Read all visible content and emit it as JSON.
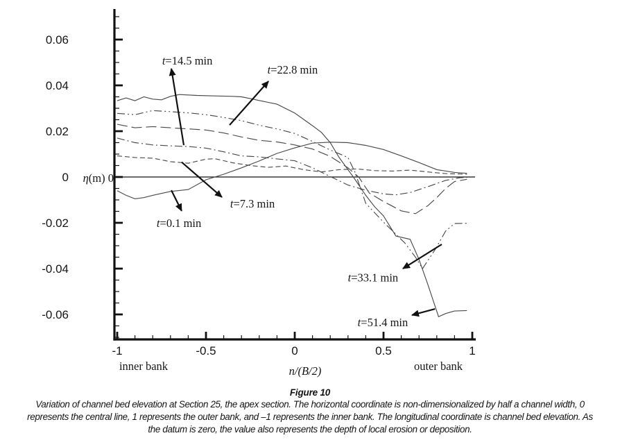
{
  "figure": {
    "caption_title": "Figure 10",
    "caption_lines": [
      "Variation of channel bed elevation at Section 25, the apex section. The horizontal coordinate is non-dimensionalized by half a channel width, 0",
      "represents the central line, 1 represents the outer bank, and –1 represents the inner bank. The longitudinal coordinate is channel bed elevation. As",
      "the datum is zero, the value also represents the depth of local erosion or deposition."
    ]
  },
  "chart_data": {
    "type": "line",
    "title": "",
    "xlabel": "n/(B/2)",
    "ylabel": "η(m) 0",
    "x_left_label": "inner bank",
    "x_right_label": "outer bank",
    "xlim": [
      -1,
      1.02
    ],
    "ylim": [
      -0.071,
      0.0733
    ],
    "x_ticks": [
      -1,
      -0.5,
      0,
      0.5,
      1
    ],
    "y_ticks": [
      0.06,
      0.04,
      0.02,
      0,
      -0.02,
      -0.04,
      -0.06
    ],
    "x_minor_step": 0.1,
    "y_minor_step": 0.005,
    "grid": false,
    "legend_position": "none",
    "line_color": "#4a4a4a",
    "axis_color": "#111111",
    "zero_line": 0,
    "series": [
      {
        "name": "t=0.1 min",
        "dash": "",
        "x": [
          -1,
          -0.95,
          -0.9,
          -0.85,
          -0.8,
          -0.7,
          -0.6,
          -0.5,
          -0.4,
          -0.3,
          -0.2,
          -0.1,
          0,
          0.1,
          0.2,
          0.3,
          0.4,
          0.5,
          0.6,
          0.7,
          0.8,
          0.9,
          0.97
        ],
        "y": [
          -0.006,
          -0.008,
          -0.0095,
          -0.009,
          -0.008,
          -0.0063,
          -0.0055,
          -0.0012,
          0.0012,
          0.004,
          0.007,
          0.0103,
          0.0127,
          0.0148,
          0.0152,
          0.015,
          0.0138,
          0.012,
          0.0092,
          0.0063,
          0.0032,
          0.002,
          0.0016
        ]
      },
      {
        "name": "t=7.3 min",
        "dash": "7,4",
        "x": [
          -1,
          -0.9,
          -0.8,
          -0.7,
          -0.6,
          -0.5,
          -0.45,
          -0.35,
          -0.25,
          -0.15,
          -0.05,
          0.05,
          0.15,
          0.25,
          0.35,
          0.45,
          0.55,
          0.65,
          0.75,
          0.85,
          0.97
        ],
        "y": [
          0.0092,
          0.0085,
          0.0082,
          0.0067,
          0.006,
          0.0078,
          0.008,
          0.0062,
          0.005,
          0.0042,
          0.0048,
          0.0032,
          0.0022,
          0.0032,
          0.0035,
          0.0028,
          0.0026,
          0.003,
          0.0022,
          0.0015,
          0.0012
        ]
      },
      {
        "name": "t=14.5 min",
        "dash": "11,4,2,4",
        "x": [
          -1,
          -0.9,
          -0.8,
          -0.7,
          -0.6,
          -0.5,
          -0.4,
          -0.3,
          -0.2,
          -0.1,
          0,
          0.1,
          0.2,
          0.3,
          0.4,
          0.5,
          0.57,
          0.65,
          0.75,
          0.85,
          0.93,
          0.97
        ],
        "y": [
          0.017,
          0.015,
          0.014,
          0.0136,
          0.0133,
          0.0126,
          0.011,
          0.0092,
          0.0088,
          0.0079,
          0.0071,
          0.004,
          0.0002,
          -0.0035,
          -0.0058,
          -0.0074,
          -0.0078,
          -0.0068,
          -0.0042,
          -0.0015,
          -0.0003,
          -0.0002
        ]
      },
      {
        "name": "t=22.8 min",
        "dash": "15,6",
        "x": [
          -1,
          -0.9,
          -0.8,
          -0.7,
          -0.6,
          -0.5,
          -0.4,
          -0.3,
          -0.2,
          -0.1,
          0,
          0.1,
          0.2,
          0.3,
          0.36,
          0.42,
          0.5,
          0.6,
          0.68,
          0.75,
          0.8,
          0.85,
          0.9,
          0.97
        ],
        "y": [
          0.023,
          0.0215,
          0.022,
          0.0215,
          0.021,
          0.0205,
          0.0192,
          0.0175,
          0.016,
          0.0153,
          0.014,
          0.0122,
          0.009,
          0.004,
          0,
          -0.007,
          -0.0107,
          -0.0148,
          -0.016,
          -0.0125,
          -0.009,
          -0.005,
          -0.002,
          -0.001
        ]
      },
      {
        "name": "t=33.1 min",
        "dash": "11,4,2,4,2,4",
        "x": [
          -1,
          -0.9,
          -0.8,
          -0.7,
          -0.6,
          -0.5,
          -0.4,
          -0.3,
          -0.2,
          -0.1,
          0,
          0.1,
          0.2,
          0.3,
          0.34,
          0.4,
          0.5,
          0.62,
          0.68,
          0.72,
          0.79,
          0.85,
          0.9,
          0.97
        ],
        "y": [
          0.0278,
          0.0272,
          0.029,
          0.0285,
          0.028,
          0.0272,
          0.026,
          0.0246,
          0.0226,
          0.021,
          0.019,
          0.0155,
          0.0118,
          0.0085,
          0.002,
          -0.0115,
          -0.0197,
          -0.0288,
          -0.035,
          -0.04,
          -0.0318,
          -0.0236,
          -0.0203,
          -0.0202
        ]
      },
      {
        "name": "t=51.4 min",
        "dash": "",
        "x": [
          -1,
          -0.95,
          -0.9,
          -0.85,
          -0.8,
          -0.75,
          -0.7,
          -0.65,
          -0.55,
          -0.45,
          -0.35,
          -0.3,
          -0.25,
          -0.2,
          -0.1,
          0,
          0.1,
          0.15,
          0.2,
          0.25,
          0.33,
          0.4,
          0.45,
          0.5,
          0.57,
          0.65,
          0.7,
          0.75,
          0.81,
          0.85,
          0.9,
          0.97
        ],
        "y": [
          0.0333,
          0.0345,
          0.0333,
          0.035,
          0.034,
          0.0337,
          0.0352,
          0.036,
          0.0356,
          0.0354,
          0.0352,
          0.035,
          0.0342,
          0.0334,
          0.0318,
          0.0279,
          0.0224,
          0.0195,
          0.015,
          0.0085,
          0,
          -0.008,
          -0.013,
          -0.017,
          -0.0258,
          -0.0272,
          -0.036,
          -0.047,
          -0.061,
          -0.0596,
          -0.0585,
          -0.0583
        ]
      }
    ],
    "annotations": [
      {
        "label": "t=14.5 min",
        "tail": [
          -0.625,
          0.0139
        ],
        "head": [
          -0.695,
          0.0473
        ],
        "text_at": [
          -0.605,
          0.0491
        ]
      },
      {
        "label": "t=22.8 min",
        "tail": [
          -0.367,
          0.0227
        ],
        "head": [
          -0.148,
          0.0418
        ],
        "text_at": [
          -0.012,
          0.0452
        ]
      },
      {
        "label": "t=7.3 min",
        "tail": [
          -0.637,
          0.0065
        ],
        "head": [
          -0.41,
          -0.0088
        ],
        "text_at": [
          -0.238,
          -0.0133
        ]
      },
      {
        "label": "t=0.1 min",
        "tail": [
          -0.695,
          -0.0058
        ],
        "head": [
          -0.637,
          -0.0148
        ],
        "text_at": [
          -0.652,
          -0.0218
        ]
      },
      {
        "label": "t=33.1 min",
        "tail": [
          0.828,
          -0.0294
        ],
        "head": [
          0.609,
          -0.04
        ],
        "text_at": [
          0.441,
          -0.0456
        ]
      },
      {
        "label": "t=51.4 min",
        "tail": [
          0.79,
          -0.0576
        ],
        "head": [
          0.66,
          -0.0603
        ],
        "text_at": [
          0.496,
          -0.0652
        ]
      }
    ]
  }
}
